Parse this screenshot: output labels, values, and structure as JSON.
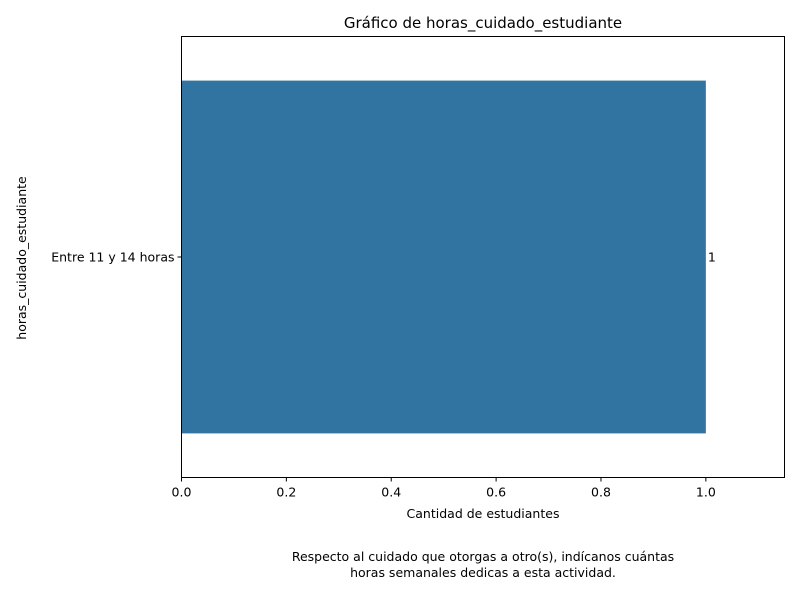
{
  "chart_data": {
    "type": "bar",
    "orientation": "horizontal",
    "title": "Gráfico de horas_cuidado_estudiante",
    "xlabel": "Cantidad de estudiantes",
    "ylabel": "horas_cuidado_estudiante",
    "categories": [
      "Entre 11 y 14 horas"
    ],
    "values": [
      1
    ],
    "data_labels": [
      "1"
    ],
    "xlim": [
      0,
      1.15
    ],
    "xticks": [
      "0.0",
      "0.2",
      "0.4",
      "0.6",
      "0.8",
      "1.0"
    ],
    "bar_color": "#3274a1",
    "grid": false
  },
  "caption": {
    "line1": "Respecto al cuidado que otorgas a otro(s), indícanos cuántas",
    "line2": "horas semanales dedicas a esta actividad."
  }
}
